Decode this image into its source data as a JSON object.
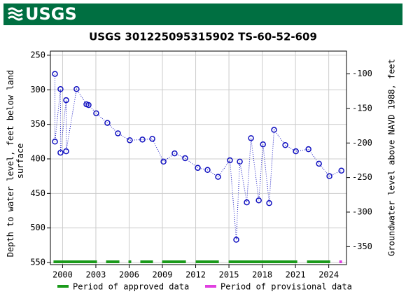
{
  "header": {
    "logo": "USGS"
  },
  "chart_data": {
    "type": "scatter",
    "title": "USGS 301225095315902 TS-60-52-609",
    "ylabel": [
      "Depth to water level, feet below land",
      "surface"
    ],
    "y2label": "Groundwater level above NAVD 1988, feet",
    "xlim": [
      1998.9,
      2025.6
    ],
    "xticks": [
      2000,
      2003,
      2006,
      2009,
      2012,
      2015,
      2018,
      2021,
      2024
    ],
    "ylim": [
      244,
      553
    ],
    "y_inverted": true,
    "yticks": [
      250,
      300,
      350,
      400,
      450,
      500,
      550
    ],
    "y2lim": [
      -376,
      -67
    ],
    "y2ticks": [
      -100,
      -150,
      -200,
      -250,
      -300,
      -350
    ],
    "grid": true,
    "series": [
      {
        "color": "#1010c0",
        "x": [
          1999.31,
          1999.31,
          1999.81,
          1999.81,
          2000.32,
          2000.32,
          2001.26,
          2002.15,
          2002.34,
          2003.03,
          2004.04,
          2004.99,
          2006.06,
          2007.2,
          2008.09,
          2009.1,
          2010.1,
          2011.05,
          2012.19,
          2013.07,
          2014.02,
          2015.09,
          2015.66,
          2015.98,
          2016.61,
          2016.99,
          2017.69,
          2018.07,
          2018.63,
          2019.07,
          2020.08,
          2021.03,
          2022.17,
          2023.12,
          2024.06,
          2025.14
        ],
        "values": [
          277,
          375,
          299,
          391,
          315,
          389,
          299,
          321,
          322,
          334,
          348,
          363,
          373,
          372,
          371,
          404,
          392,
          399,
          413,
          416,
          426,
          402,
          517,
          404,
          463,
          370,
          460,
          379,
          464,
          358,
          380,
          389,
          386,
          407,
          425,
          417
        ]
      }
    ],
    "periods": [
      {
        "name": "Period of approved data",
        "color": "#1a9a1a",
        "ranges": [
          [
            1999.18,
            2003.1
          ],
          [
            2003.92,
            2005.12
          ],
          [
            2005.94,
            2006.19
          ],
          [
            2007.01,
            2008.15
          ],
          [
            2008.97,
            2011.12
          ],
          [
            2012.0,
            2014.09
          ],
          [
            2014.97,
            2021.16
          ],
          [
            2022.04,
            2024.13
          ]
        ]
      },
      {
        "name": "Period of provisional data",
        "color": "#e040e0",
        "ranges": [
          [
            2024.95,
            2025.2
          ]
        ]
      }
    ]
  }
}
